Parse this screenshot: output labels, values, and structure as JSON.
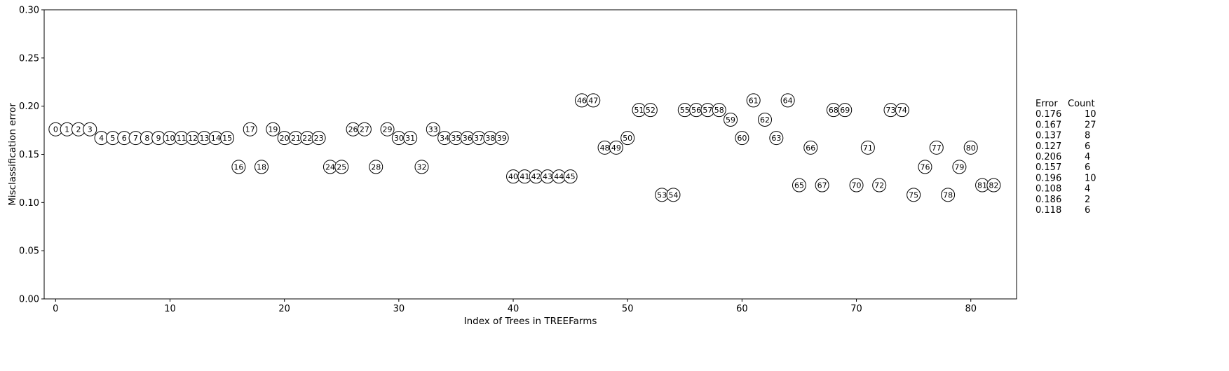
{
  "chart_data": {
    "type": "scatter",
    "xlabel": "Index of Trees in TREEFarms",
    "ylabel": "Misclassification error",
    "xlim": [
      -1,
      84
    ],
    "ylim": [
      0.0,
      0.3
    ],
    "xticks": [
      0,
      10,
      20,
      30,
      40,
      50,
      60,
      70,
      80
    ],
    "yticks": [
      "0.00",
      "0.05",
      "0.10",
      "0.15",
      "0.20",
      "0.25",
      "0.30"
    ],
    "marker": "circle-with-index-label",
    "grid": false,
    "points": [
      {
        "x": 0,
        "y": 0.176
      },
      {
        "x": 1,
        "y": 0.176
      },
      {
        "x": 2,
        "y": 0.176
      },
      {
        "x": 3,
        "y": 0.176
      },
      {
        "x": 4,
        "y": 0.167
      },
      {
        "x": 5,
        "y": 0.167
      },
      {
        "x": 6,
        "y": 0.167
      },
      {
        "x": 7,
        "y": 0.167
      },
      {
        "x": 8,
        "y": 0.167
      },
      {
        "x": 9,
        "y": 0.167
      },
      {
        "x": 10,
        "y": 0.167
      },
      {
        "x": 11,
        "y": 0.167
      },
      {
        "x": 12,
        "y": 0.167
      },
      {
        "x": 13,
        "y": 0.167
      },
      {
        "x": 14,
        "y": 0.167
      },
      {
        "x": 15,
        "y": 0.167
      },
      {
        "x": 16,
        "y": 0.137
      },
      {
        "x": 17,
        "y": 0.176
      },
      {
        "x": 18,
        "y": 0.137
      },
      {
        "x": 19,
        "y": 0.176
      },
      {
        "x": 20,
        "y": 0.167
      },
      {
        "x": 21,
        "y": 0.167
      },
      {
        "x": 22,
        "y": 0.167
      },
      {
        "x": 23,
        "y": 0.167
      },
      {
        "x": 24,
        "y": 0.137
      },
      {
        "x": 25,
        "y": 0.137
      },
      {
        "x": 26,
        "y": 0.176
      },
      {
        "x": 27,
        "y": 0.176
      },
      {
        "x": 28,
        "y": 0.137
      },
      {
        "x": 29,
        "y": 0.176
      },
      {
        "x": 30,
        "y": 0.167
      },
      {
        "x": 31,
        "y": 0.167
      },
      {
        "x": 32,
        "y": 0.137
      },
      {
        "x": 33,
        "y": 0.176
      },
      {
        "x": 34,
        "y": 0.167
      },
      {
        "x": 35,
        "y": 0.167
      },
      {
        "x": 36,
        "y": 0.167
      },
      {
        "x": 37,
        "y": 0.167
      },
      {
        "x": 38,
        "y": 0.167
      },
      {
        "x": 39,
        "y": 0.167
      },
      {
        "x": 40,
        "y": 0.127
      },
      {
        "x": 41,
        "y": 0.127
      },
      {
        "x": 42,
        "y": 0.127
      },
      {
        "x": 43,
        "y": 0.127
      },
      {
        "x": 44,
        "y": 0.127
      },
      {
        "x": 45,
        "y": 0.127
      },
      {
        "x": 46,
        "y": 0.206
      },
      {
        "x": 47,
        "y": 0.206
      },
      {
        "x": 48,
        "y": 0.157
      },
      {
        "x": 49,
        "y": 0.157
      },
      {
        "x": 50,
        "y": 0.167
      },
      {
        "x": 51,
        "y": 0.196
      },
      {
        "x": 52,
        "y": 0.196
      },
      {
        "x": 53,
        "y": 0.108
      },
      {
        "x": 54,
        "y": 0.108
      },
      {
        "x": 55,
        "y": 0.196
      },
      {
        "x": 56,
        "y": 0.196
      },
      {
        "x": 57,
        "y": 0.196
      },
      {
        "x": 58,
        "y": 0.196
      },
      {
        "x": 59,
        "y": 0.186
      },
      {
        "x": 60,
        "y": 0.167
      },
      {
        "x": 61,
        "y": 0.206
      },
      {
        "x": 62,
        "y": 0.186
      },
      {
        "x": 63,
        "y": 0.167
      },
      {
        "x": 64,
        "y": 0.206
      },
      {
        "x": 65,
        "y": 0.118
      },
      {
        "x": 66,
        "y": 0.157
      },
      {
        "x": 67,
        "y": 0.118
      },
      {
        "x": 68,
        "y": 0.196
      },
      {
        "x": 69,
        "y": 0.196
      },
      {
        "x": 70,
        "y": 0.118
      },
      {
        "x": 71,
        "y": 0.157
      },
      {
        "x": 72,
        "y": 0.118
      },
      {
        "x": 73,
        "y": 0.196
      },
      {
        "x": 74,
        "y": 0.196
      },
      {
        "x": 75,
        "y": 0.108
      },
      {
        "x": 76,
        "y": 0.137
      },
      {
        "x": 77,
        "y": 0.157
      },
      {
        "x": 78,
        "y": 0.108
      },
      {
        "x": 79,
        "y": 0.137
      },
      {
        "x": 80,
        "y": 0.157
      },
      {
        "x": 81,
        "y": 0.118
      },
      {
        "x": 82,
        "y": 0.118
      }
    ],
    "side_table": {
      "headers": [
        "Error",
        "Count"
      ],
      "rows": [
        [
          "0.176",
          "10"
        ],
        [
          "0.167",
          "27"
        ],
        [
          "0.137",
          "8"
        ],
        [
          "0.127",
          "6"
        ],
        [
          "0.206",
          "4"
        ],
        [
          "0.157",
          "6"
        ],
        [
          "0.196",
          "10"
        ],
        [
          "0.108",
          "4"
        ],
        [
          "0.186",
          "2"
        ],
        [
          "0.118",
          "6"
        ]
      ]
    }
  }
}
